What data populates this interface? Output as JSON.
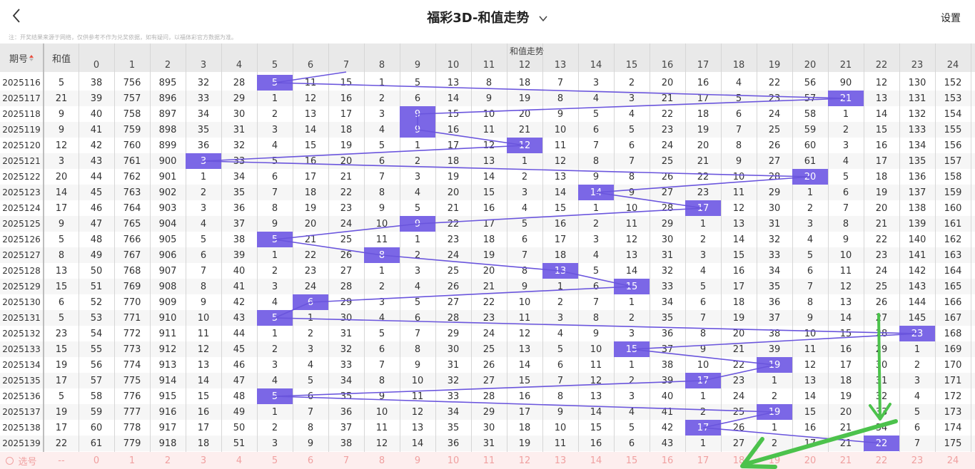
{
  "header": {
    "title": "福彩3D-和值走势",
    "settings_label": "设置",
    "notice": "注：开奖结果来源于网络，仅供参考不作为兑奖依据，如有疑问，以福体彩官方数据为准。"
  },
  "table": {
    "period_header": "期号",
    "sum_header": "和值",
    "trend_header": "和值走势",
    "columns": [
      "0",
      "1",
      "2",
      "3",
      "4",
      "5",
      "6",
      "7",
      "8",
      "9",
      "10",
      "11",
      "12",
      "13",
      "14",
      "15",
      "16",
      "17",
      "18",
      "19",
      "20",
      "21",
      "22",
      "23",
      "24"
    ],
    "rows": [
      {
        "period": "2025116",
        "sum": "5",
        "cells": [
          "38",
          "756",
          "895",
          "32",
          "28",
          "5",
          "11",
          "15",
          "1",
          "5",
          "13",
          "8",
          "18",
          "7",
          "3",
          "2",
          "20",
          "16",
          "4",
          "22",
          "56",
          "90",
          "12",
          "130",
          "152"
        ]
      },
      {
        "period": "2025117",
        "sum": "21",
        "cells": [
          "39",
          "757",
          "896",
          "33",
          "29",
          "1",
          "12",
          "16",
          "2",
          "6",
          "14",
          "9",
          "19",
          "8",
          "4",
          "3",
          "21",
          "17",
          "5",
          "23",
          "57",
          "21",
          "13",
          "131",
          "153"
        ]
      },
      {
        "period": "2025118",
        "sum": "9",
        "cells": [
          "40",
          "758",
          "897",
          "34",
          "30",
          "2",
          "13",
          "17",
          "3",
          "9",
          "15",
          "10",
          "20",
          "9",
          "5",
          "4",
          "22",
          "18",
          "6",
          "24",
          "58",
          "1",
          "14",
          "132",
          "154"
        ]
      },
      {
        "period": "2025119",
        "sum": "9",
        "cells": [
          "41",
          "759",
          "898",
          "35",
          "31",
          "3",
          "14",
          "18",
          "4",
          "9",
          "16",
          "11",
          "21",
          "10",
          "6",
          "5",
          "23",
          "19",
          "7",
          "25",
          "59",
          "2",
          "15",
          "133",
          "155"
        ]
      },
      {
        "period": "2025120",
        "sum": "12",
        "cells": [
          "42",
          "760",
          "899",
          "36",
          "32",
          "4",
          "15",
          "19",
          "5",
          "1",
          "17",
          "12",
          "12",
          "11",
          "7",
          "6",
          "24",
          "20",
          "8",
          "26",
          "60",
          "3",
          "16",
          "134",
          "156"
        ]
      },
      {
        "period": "2025121",
        "sum": "3",
        "cells": [
          "43",
          "761",
          "900",
          "3",
          "33",
          "5",
          "16",
          "20",
          "6",
          "2",
          "18",
          "13",
          "1",
          "12",
          "8",
          "7",
          "25",
          "21",
          "9",
          "27",
          "61",
          "4",
          "17",
          "135",
          "157"
        ]
      },
      {
        "period": "2025122",
        "sum": "20",
        "cells": [
          "44",
          "762",
          "901",
          "1",
          "34",
          "6",
          "17",
          "21",
          "7",
          "3",
          "19",
          "14",
          "2",
          "13",
          "9",
          "8",
          "26",
          "22",
          "10",
          "28",
          "20",
          "5",
          "18",
          "136",
          "158"
        ]
      },
      {
        "period": "2025123",
        "sum": "14",
        "cells": [
          "45",
          "763",
          "902",
          "2",
          "35",
          "7",
          "18",
          "22",
          "8",
          "4",
          "20",
          "15",
          "3",
          "14",
          "14",
          "9",
          "27",
          "23",
          "11",
          "29",
          "1",
          "6",
          "19",
          "137",
          "159"
        ]
      },
      {
        "period": "2025124",
        "sum": "17",
        "cells": [
          "46",
          "764",
          "903",
          "3",
          "36",
          "8",
          "19",
          "23",
          "9",
          "5",
          "21",
          "16",
          "4",
          "15",
          "1",
          "10",
          "28",
          "17",
          "12",
          "30",
          "2",
          "7",
          "20",
          "138",
          "160"
        ]
      },
      {
        "period": "2025125",
        "sum": "9",
        "cells": [
          "47",
          "765",
          "904",
          "4",
          "37",
          "9",
          "20",
          "24",
          "10",
          "9",
          "22",
          "17",
          "5",
          "16",
          "2",
          "11",
          "29",
          "1",
          "13",
          "31",
          "3",
          "8",
          "21",
          "139",
          "161"
        ]
      },
      {
        "period": "2025126",
        "sum": "5",
        "cells": [
          "48",
          "766",
          "905",
          "5",
          "38",
          "5",
          "21",
          "25",
          "11",
          "1",
          "23",
          "18",
          "6",
          "17",
          "3",
          "12",
          "30",
          "2",
          "14",
          "32",
          "4",
          "9",
          "22",
          "140",
          "162"
        ]
      },
      {
        "period": "2025127",
        "sum": "8",
        "cells": [
          "49",
          "767",
          "906",
          "6",
          "39",
          "1",
          "22",
          "26",
          "8",
          "2",
          "24",
          "19",
          "7",
          "18",
          "4",
          "13",
          "31",
          "3",
          "15",
          "33",
          "5",
          "10",
          "23",
          "141",
          "163"
        ]
      },
      {
        "period": "2025128",
        "sum": "13",
        "cells": [
          "50",
          "768",
          "907",
          "7",
          "40",
          "2",
          "23",
          "27",
          "1",
          "3",
          "25",
          "20",
          "8",
          "13",
          "5",
          "14",
          "32",
          "4",
          "16",
          "34",
          "6",
          "11",
          "24",
          "142",
          "164"
        ]
      },
      {
        "period": "2025129",
        "sum": "15",
        "cells": [
          "51",
          "769",
          "908",
          "8",
          "41",
          "3",
          "24",
          "28",
          "2",
          "4",
          "26",
          "21",
          "9",
          "1",
          "6",
          "15",
          "33",
          "5",
          "17",
          "35",
          "7",
          "12",
          "25",
          "143",
          "165"
        ]
      },
      {
        "period": "2025130",
        "sum": "6",
        "cells": [
          "52",
          "770",
          "909",
          "9",
          "42",
          "4",
          "6",
          "29",
          "3",
          "5",
          "27",
          "22",
          "10",
          "2",
          "7",
          "1",
          "34",
          "6",
          "18",
          "36",
          "8",
          "13",
          "26",
          "144",
          "166"
        ]
      },
      {
        "period": "2025131",
        "sum": "5",
        "cells": [
          "53",
          "771",
          "910",
          "10",
          "43",
          "5",
          "1",
          "30",
          "4",
          "6",
          "28",
          "23",
          "11",
          "3",
          "8",
          "2",
          "35",
          "7",
          "19",
          "37",
          "9",
          "14",
          "27",
          "145",
          "167"
        ]
      },
      {
        "period": "2025132",
        "sum": "23",
        "cells": [
          "54",
          "772",
          "911",
          "11",
          "44",
          "1",
          "2",
          "31",
          "5",
          "7",
          "29",
          "24",
          "12",
          "4",
          "9",
          "3",
          "36",
          "8",
          "20",
          "38",
          "10",
          "15",
          "28",
          "23",
          "168"
        ]
      },
      {
        "period": "2025133",
        "sum": "15",
        "cells": [
          "55",
          "773",
          "912",
          "12",
          "45",
          "2",
          "3",
          "32",
          "6",
          "8",
          "30",
          "25",
          "13",
          "5",
          "10",
          "15",
          "37",
          "9",
          "21",
          "39",
          "11",
          "16",
          "29",
          "1",
          "169"
        ]
      },
      {
        "period": "2025134",
        "sum": "19",
        "cells": [
          "56",
          "774",
          "913",
          "13",
          "46",
          "3",
          "4",
          "33",
          "7",
          "9",
          "31",
          "26",
          "14",
          "6",
          "11",
          "1",
          "38",
          "10",
          "22",
          "19",
          "12",
          "17",
          "30",
          "2",
          "170"
        ]
      },
      {
        "period": "2025135",
        "sum": "17",
        "cells": [
          "57",
          "775",
          "914",
          "14",
          "47",
          "4",
          "5",
          "34",
          "8",
          "10",
          "32",
          "27",
          "15",
          "7",
          "12",
          "2",
          "39",
          "17",
          "23",
          "1",
          "13",
          "18",
          "31",
          "3",
          "171"
        ]
      },
      {
        "period": "2025136",
        "sum": "5",
        "cells": [
          "58",
          "776",
          "915",
          "15",
          "48",
          "5",
          "6",
          "35",
          "9",
          "11",
          "33",
          "28",
          "16",
          "8",
          "13",
          "3",
          "40",
          "1",
          "24",
          "2",
          "14",
          "19",
          "32",
          "4",
          "172"
        ]
      },
      {
        "period": "2025137",
        "sum": "19",
        "cells": [
          "59",
          "777",
          "916",
          "16",
          "49",
          "1",
          "7",
          "36",
          "10",
          "12",
          "34",
          "29",
          "17",
          "9",
          "14",
          "4",
          "41",
          "2",
          "25",
          "19",
          "15",
          "20",
          "33",
          "5",
          "173"
        ]
      },
      {
        "period": "2025138",
        "sum": "17",
        "cells": [
          "60",
          "778",
          "917",
          "17",
          "50",
          "2",
          "8",
          "37",
          "11",
          "13",
          "35",
          "30",
          "18",
          "10",
          "15",
          "5",
          "42",
          "17",
          "26",
          "1",
          "16",
          "21",
          "34",
          "6",
          "174"
        ]
      },
      {
        "period": "2025139",
        "sum": "22",
        "cells": [
          "61",
          "779",
          "918",
          "18",
          "51",
          "3",
          "9",
          "38",
          "12",
          "14",
          "36",
          "31",
          "19",
          "11",
          "16",
          "6",
          "43",
          "1",
          "27",
          "2",
          "17",
          "21",
          "22",
          "7",
          "175"
        ]
      }
    ],
    "selection_row": {
      "label": "选号",
      "sum_placeholder": "--",
      "numbers": [
        "0",
        "1",
        "2",
        "3",
        "4",
        "5",
        "6",
        "7",
        "8",
        "9",
        "10",
        "11",
        "12",
        "13",
        "14",
        "15",
        "16",
        "17",
        "18",
        "19",
        "20",
        "21",
        "22",
        "23",
        "24"
      ]
    }
  },
  "colors": {
    "hit_fill": "#7b67e6",
    "trend_line": "#6a55dd",
    "annotation_arrow": "#4cc24c",
    "header_bg": "#e9e9e9",
    "selection_bg": "#fdeeee",
    "selection_text": "#f0a0a0"
  },
  "icons": {
    "back": "back-chevron-icon",
    "title_dropdown": "chevron-down-icon",
    "sort": "sort-arrows-icon",
    "radio": "radio-circle-icon"
  }
}
